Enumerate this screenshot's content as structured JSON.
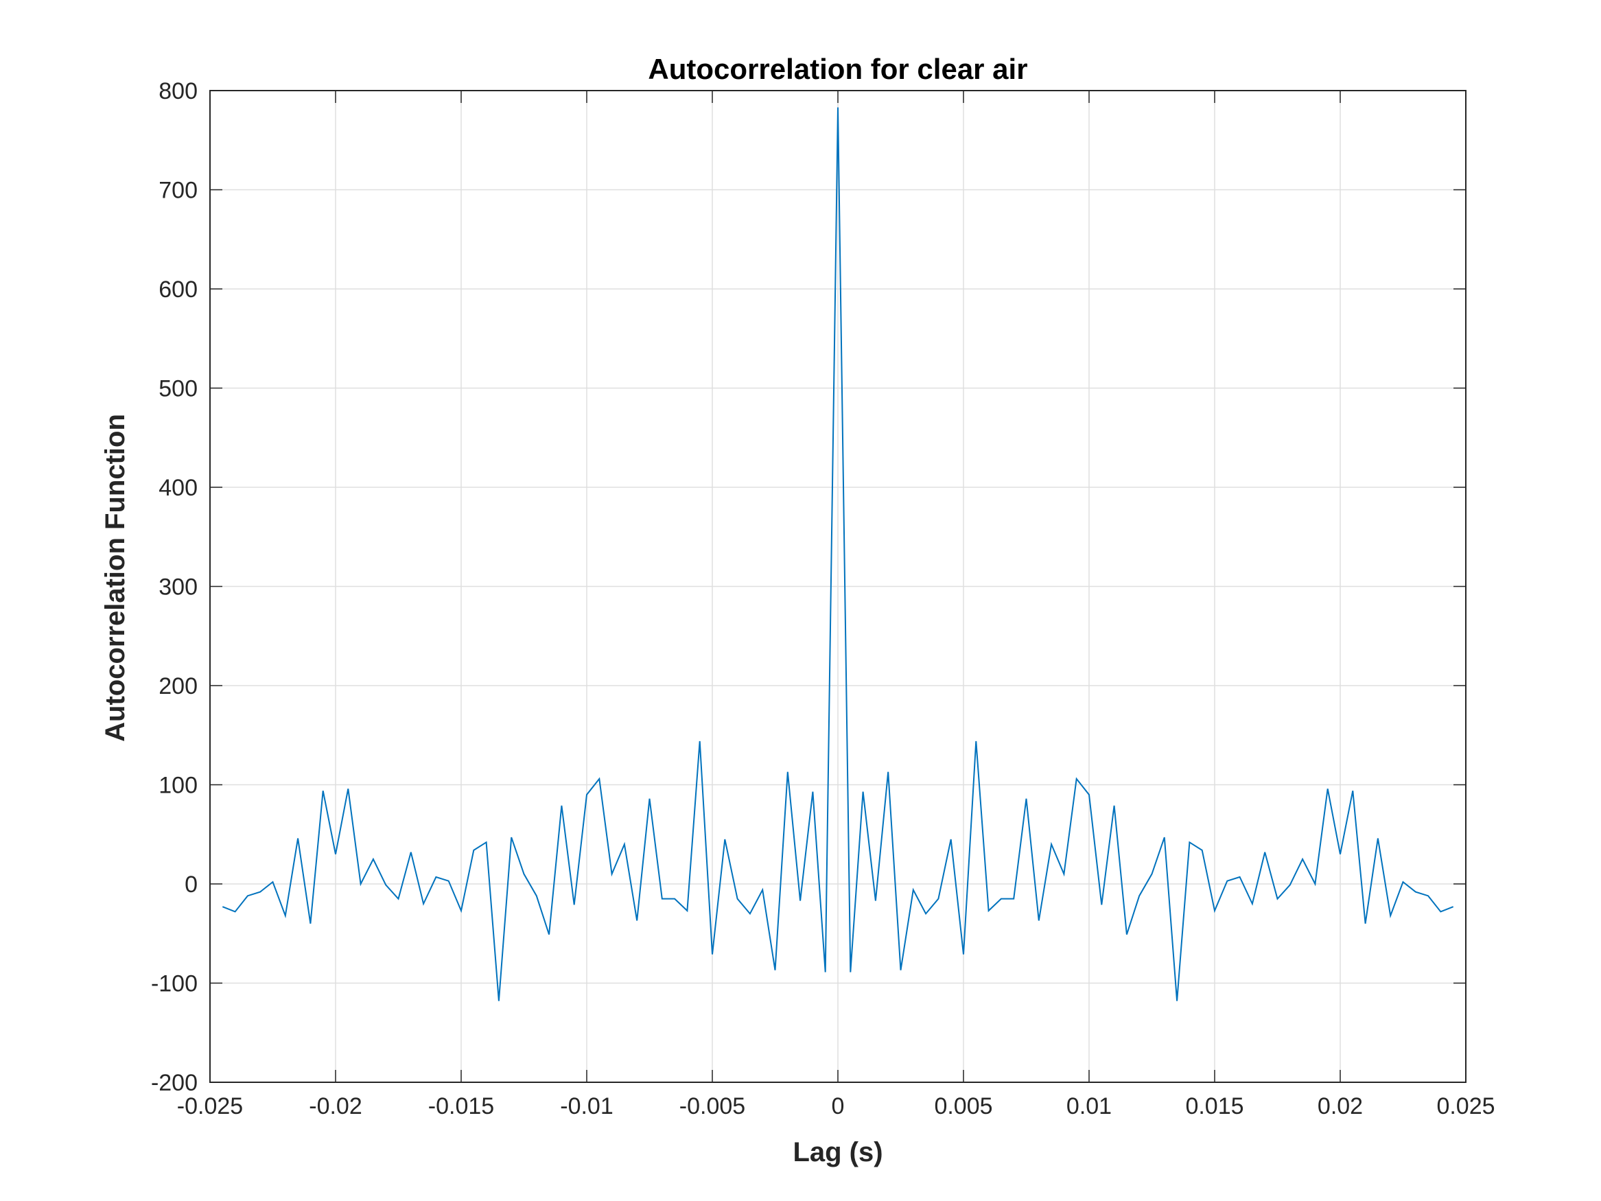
{
  "chart_data": {
    "type": "line",
    "title": "Autocorrelation for clear air",
    "xlabel": "Lag (s)",
    "ylabel": "Autocorrelation Function",
    "xlim": [
      -0.025,
      0.025
    ],
    "ylim": [
      -200,
      800
    ],
    "grid": true,
    "legend": "none",
    "line_color": "#0072BD",
    "x_ticks": [
      -0.025,
      -0.02,
      -0.015,
      -0.01,
      -0.005,
      0,
      0.005,
      0.01,
      0.015,
      0.02,
      0.025
    ],
    "x_tick_labels": [
      "-0.025",
      "-0.02",
      "-0.015",
      "-0.01",
      "-0.005",
      "0",
      "0.005",
      "0.01",
      "0.015",
      "0.02",
      "0.025"
    ],
    "y_ticks": [
      -200,
      -100,
      0,
      100,
      200,
      300,
      400,
      500,
      600,
      700,
      800
    ],
    "y_tick_labels": [
      "-200",
      "-100",
      "0",
      "100",
      "200",
      "300",
      "400",
      "500",
      "600",
      "700",
      "800"
    ],
    "series": [
      {
        "x": [
          -0.0245,
          -0.024,
          -0.0235,
          -0.023,
          -0.0225,
          -0.022,
          -0.0215,
          -0.021,
          -0.0205,
          -0.02,
          -0.0195,
          -0.019,
          -0.0185,
          -0.018,
          -0.0175,
          -0.017,
          -0.0165,
          -0.016,
          -0.0155,
          -0.015,
          -0.0145,
          -0.014,
          -0.0135,
          -0.013,
          -0.0125,
          -0.012,
          -0.0115,
          -0.011,
          -0.0105,
          -0.01,
          -0.0095,
          -0.009,
          -0.0085,
          -0.008,
          -0.0075,
          -0.007,
          -0.0065,
          -0.006,
          -0.0055,
          -0.005,
          -0.0045,
          -0.004,
          -0.0035,
          -0.003,
          -0.0025,
          -0.002,
          -0.0015,
          -0.001,
          -0.0005,
          0,
          0.0005,
          0.001,
          0.0015,
          0.002,
          0.0025,
          0.003,
          0.0035,
          0.004,
          0.0045,
          0.005,
          0.0055,
          0.006,
          0.0065,
          0.007,
          0.0075,
          0.008,
          0.0085,
          0.009,
          0.0095,
          0.01,
          0.0105,
          0.011,
          0.0115,
          0.012,
          0.0125,
          0.013,
          0.0135,
          0.014,
          0.0145,
          0.015,
          0.0155,
          0.016,
          0.0165,
          0.017,
          0.0175,
          0.018,
          0.0185,
          0.019,
          0.0195,
          0.02,
          0.0205,
          0.021,
          0.0215,
          0.022,
          0.0225,
          0.023,
          0.0235,
          0.024,
          0.0245
        ],
        "values": [
          -23,
          -28,
          -12,
          -8,
          2,
          -32,
          46,
          -40,
          94,
          30,
          96,
          0,
          25,
          -1,
          -15,
          32,
          -20,
          7,
          3,
          -27,
          34,
          42,
          -118,
          47,
          10,
          -12,
          -51,
          79,
          -21,
          90,
          106,
          10,
          40,
          -37,
          86,
          -15,
          -15,
          -27,
          144,
          -71,
          45,
          -15,
          -30,
          -6,
          -87,
          113,
          -17,
          93,
          -89,
          783,
          -89,
          93,
          -17,
          113,
          -87,
          -6,
          -30,
          -15,
          45,
          -71,
          144,
          -27,
          -15,
          -15,
          86,
          -37,
          40,
          10,
          106,
          90,
          -21,
          79,
          -51,
          -12,
          10,
          47,
          -118,
          42,
          34,
          -27,
          3,
          7,
          -20,
          32,
          -15,
          -1,
          25,
          0,
          96,
          30,
          94,
          -40,
          46,
          -32,
          2,
          -8,
          -12,
          -28,
          -23
        ]
      }
    ]
  }
}
